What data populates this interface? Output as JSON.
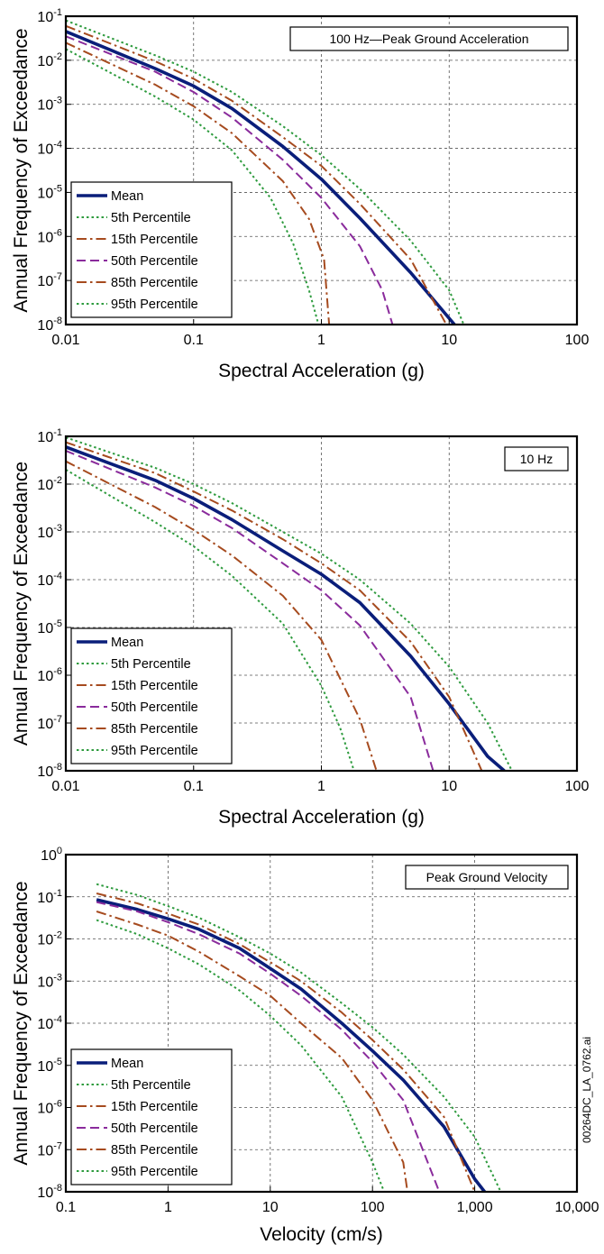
{
  "figure_id": "00264DC_LA_0762.ai",
  "series_styles": [
    {
      "key": "mean",
      "color": "#0a1e7a",
      "dash": "",
      "width": 3.6
    },
    {
      "key": "p5",
      "color": "#2e9b3e",
      "dash": "2.5,3",
      "width": 2
    },
    {
      "key": "p15",
      "color": "#a64b1f",
      "dash": "11,4,2.5,4",
      "width": 2
    },
    {
      "key": "p50",
      "color": "#8a2b9c",
      "dash": "10,5",
      "width": 2
    },
    {
      "key": "p85",
      "color": "#a64b1f",
      "dash": "11,4,2.5,4",
      "width": 2
    },
    {
      "key": "p95",
      "color": "#2e9b3e",
      "dash": "2.5,3",
      "width": 2
    }
  ],
  "chart_data": [
    {
      "type": "line",
      "panel_label": "100 Hz—Peak Ground Acceleration",
      "xlabel": "Spectral Acceleration (g)",
      "ylabel": "Annual Frequency of Exceedance",
      "xscale": "log",
      "yscale": "log",
      "xlim": [
        0.01,
        100
      ],
      "ylim": [
        1e-08,
        0.1
      ],
      "x_ticks": [
        {
          "v": 0.01,
          "label": "0.01"
        },
        {
          "v": 0.1,
          "label": "0.1"
        },
        {
          "v": 1,
          "label": "1"
        },
        {
          "v": 10,
          "label": "10"
        },
        {
          "v": 100,
          "label": "100"
        }
      ],
      "y_ticks": [
        {
          "v": 1e-08,
          "base": "10",
          "exp": "-8"
        },
        {
          "v": 1e-07,
          "base": "10",
          "exp": "-7"
        },
        {
          "v": 1e-06,
          "base": "10",
          "exp": "-6"
        },
        {
          "v": 1e-05,
          "base": "10",
          "exp": "-5"
        },
        {
          "v": 0.0001,
          "base": "10",
          "exp": "-4"
        },
        {
          "v": 0.001,
          "base": "10",
          "exp": "-3"
        },
        {
          "v": 0.01,
          "base": "10",
          "exp": "-2"
        },
        {
          "v": 0.1,
          "base": "10",
          "exp": "-1"
        }
      ],
      "grid": true,
      "legend_position": "bottom-left",
      "series": [
        {
          "name": "Mean",
          "style": 0,
          "x": [
            0.01,
            0.05,
            0.1,
            0.2,
            0.5,
            1,
            2,
            5,
            11
          ],
          "y": [
            0.045,
            0.0065,
            0.0026,
            0.0008,
            0.00011,
            2e-05,
            2.6e-06,
            1.5e-07,
            1e-08
          ]
        },
        {
          "name": "5th Percentile",
          "style": 1,
          "x": [
            0.01,
            0.05,
            0.1,
            0.2,
            0.4,
            0.6,
            0.8,
            0.95
          ],
          "y": [
            0.018,
            0.0015,
            0.00045,
            9e-05,
            7.5e-06,
            7e-07,
            6e-08,
            1e-08
          ]
        },
        {
          "name": "15th Percentile",
          "style": 2,
          "x": [
            0.01,
            0.05,
            0.1,
            0.2,
            0.5,
            0.8,
            1.05,
            1.15
          ],
          "y": [
            0.025,
            0.0028,
            0.0009,
            0.00022,
            1.8e-05,
            2.5e-06,
            3e-07,
            1e-08
          ]
        },
        {
          "name": "50th Percentile",
          "style": 3,
          "x": [
            0.01,
            0.05,
            0.1,
            0.2,
            0.5,
            1,
            2,
            3,
            3.6
          ],
          "y": [
            0.035,
            0.0055,
            0.0019,
            0.0005,
            5.5e-05,
            7.5e-06,
            6e-07,
            6e-08,
            1e-08
          ]
        },
        {
          "name": "85th Percentile",
          "style": 4,
          "x": [
            0.01,
            0.05,
            0.1,
            0.2,
            0.5,
            1,
            2,
            5,
            9.5
          ],
          "y": [
            0.06,
            0.0095,
            0.0038,
            0.0012,
            0.00018,
            4e-05,
            5.5e-06,
            3e-07,
            1e-08
          ]
        },
        {
          "name": "95th Percentile",
          "style": 5,
          "x": [
            0.01,
            0.05,
            0.1,
            0.2,
            0.5,
            1,
            2,
            5,
            10,
            13
          ],
          "y": [
            0.08,
            0.013,
            0.0055,
            0.0019,
            0.00032,
            7e-05,
            1.2e-05,
            8e-07,
            6e-08,
            1e-08
          ]
        }
      ]
    },
    {
      "type": "line",
      "panel_label": "10 Hz",
      "xlabel": "Spectral Acceleration (g)",
      "ylabel": "Annual Frequency of Exceedance",
      "xscale": "log",
      "yscale": "log",
      "xlim": [
        0.01,
        100
      ],
      "ylim": [
        1e-08,
        0.1
      ],
      "x_ticks": [
        {
          "v": 0.01,
          "label": "0.01"
        },
        {
          "v": 0.1,
          "label": "0.1"
        },
        {
          "v": 1,
          "label": "1"
        },
        {
          "v": 10,
          "label": "10"
        },
        {
          "v": 100,
          "label": "100"
        }
      ],
      "y_ticks": [
        {
          "v": 1e-08,
          "base": "10",
          "exp": "-8"
        },
        {
          "v": 1e-07,
          "base": "10",
          "exp": "-7"
        },
        {
          "v": 1e-06,
          "base": "10",
          "exp": "-6"
        },
        {
          "v": 1e-05,
          "base": "10",
          "exp": "-5"
        },
        {
          "v": 0.0001,
          "base": "10",
          "exp": "-4"
        },
        {
          "v": 0.001,
          "base": "10",
          "exp": "-3"
        },
        {
          "v": 0.01,
          "base": "10",
          "exp": "-2"
        },
        {
          "v": 0.1,
          "base": "10",
          "exp": "-1"
        }
      ],
      "grid": true,
      "legend_position": "bottom-left",
      "series": [
        {
          "name": "Mean",
          "style": 0,
          "x": [
            0.01,
            0.05,
            0.1,
            0.2,
            0.5,
            1,
            2,
            5,
            10,
            20,
            27
          ],
          "y": [
            0.06,
            0.012,
            0.005,
            0.0018,
            0.0004,
            0.00013,
            3.3e-05,
            2.5e-06,
            2.5e-07,
            2e-08,
            1e-08
          ]
        },
        {
          "name": "5th Percentile",
          "style": 1,
          "x": [
            0.01,
            0.05,
            0.1,
            0.2,
            0.5,
            1,
            1.4,
            1.8
          ],
          "y": [
            0.02,
            0.0016,
            0.0005,
            0.00012,
            1.2e-05,
            6e-07,
            8e-08,
            1e-08
          ]
        },
        {
          "name": "15th Percentile",
          "style": 2,
          "x": [
            0.01,
            0.05,
            0.1,
            0.2,
            0.5,
            1,
            2,
            2.7
          ],
          "y": [
            0.03,
            0.0033,
            0.0011,
            0.00032,
            4.6e-05,
            5.5e-06,
            1.2e-07,
            1e-08
          ]
        },
        {
          "name": "50th Percentile",
          "style": 3,
          "x": [
            0.01,
            0.05,
            0.1,
            0.2,
            0.5,
            1,
            2,
            5,
            7.5
          ],
          "y": [
            0.05,
            0.0085,
            0.0035,
            0.0012,
            0.00022,
            6e-05,
            1.1e-05,
            3.5e-07,
            1e-08
          ]
        },
        {
          "name": "85th Percentile",
          "style": 4,
          "x": [
            0.01,
            0.05,
            0.1,
            0.2,
            0.5,
            1,
            2,
            5,
            10,
            18
          ],
          "y": [
            0.075,
            0.017,
            0.007,
            0.0028,
            0.0007,
            0.00022,
            6e-05,
            5e-06,
            3.5e-07,
            1e-08
          ]
        },
        {
          "name": "95th Percentile",
          "style": 5,
          "x": [
            0.01,
            0.05,
            0.1,
            0.2,
            0.5,
            1,
            2,
            5,
            10,
            20,
            31
          ],
          "y": [
            0.095,
            0.022,
            0.01,
            0.004,
            0.001,
            0.00035,
            0.0001,
            1.2e-05,
            1.5e-06,
            1e-07,
            1e-08
          ]
        }
      ]
    },
    {
      "type": "line",
      "panel_label": "Peak Ground Velocity",
      "xlabel": "Velocity (cm/s)",
      "ylabel": "Annual Frequency of Exceedance",
      "xscale": "log",
      "yscale": "log",
      "xlim": [
        0.1,
        10000
      ],
      "ylim": [
        1e-08,
        1
      ],
      "x_ticks": [
        {
          "v": 0.1,
          "label": "0.1"
        },
        {
          "v": 1,
          "label": "1"
        },
        {
          "v": 10,
          "label": "10"
        },
        {
          "v": 100,
          "label": "100"
        },
        {
          "v": 1000,
          "label": "1,000"
        },
        {
          "v": 10000,
          "label": "10,000"
        }
      ],
      "y_ticks": [
        {
          "v": 1e-08,
          "base": "10",
          "exp": "-8"
        },
        {
          "v": 1e-07,
          "base": "10",
          "exp": "-7"
        },
        {
          "v": 1e-06,
          "base": "10",
          "exp": "-6"
        },
        {
          "v": 1e-05,
          "base": "10",
          "exp": "-5"
        },
        {
          "v": 0.0001,
          "base": "10",
          "exp": "-4"
        },
        {
          "v": 0.001,
          "base": "10",
          "exp": "-3"
        },
        {
          "v": 0.01,
          "base": "10",
          "exp": "-2"
        },
        {
          "v": 0.1,
          "base": "10",
          "exp": "-1"
        },
        {
          "v": 1,
          "base": "10",
          "exp": "0"
        }
      ],
      "grid": true,
      "legend_position": "bottom-left",
      "series": [
        {
          "name": "Mean",
          "style": 0,
          "x": [
            0.2,
            0.5,
            1,
            2,
            5,
            10,
            20,
            50,
            100,
            200,
            500,
            1000,
            1250
          ],
          "y": [
            0.085,
            0.05,
            0.03,
            0.017,
            0.006,
            0.002,
            0.00065,
            0.0001,
            2.2e-05,
            4.5e-06,
            3.5e-07,
            2e-08,
            1e-08
          ]
        },
        {
          "name": "5th Percentile",
          "style": 1,
          "x": [
            0.2,
            0.5,
            1,
            2,
            5,
            10,
            20,
            50,
            100,
            130
          ],
          "y": [
            0.028,
            0.013,
            0.006,
            0.0025,
            0.0006,
            0.00015,
            3e-05,
            1.8e-06,
            5e-08,
            1e-08
          ]
        },
        {
          "name": "15th Percentile",
          "style": 2,
          "x": [
            0.2,
            0.5,
            1,
            2,
            5,
            10,
            20,
            50,
            100,
            200,
            220
          ],
          "y": [
            0.045,
            0.022,
            0.012,
            0.005,
            0.0013,
            0.00045,
            0.0001,
            1.5e-05,
            1.5e-06,
            5e-08,
            1e-08
          ]
        },
        {
          "name": "50th Percentile",
          "style": 3,
          "x": [
            0.2,
            0.5,
            1,
            2,
            5,
            10,
            20,
            50,
            100,
            200,
            450
          ],
          "y": [
            0.075,
            0.045,
            0.025,
            0.013,
            0.0045,
            0.0015,
            0.00045,
            7e-05,
            1.2e-05,
            1.5e-06,
            1e-08
          ]
        },
        {
          "name": "85th Percentile",
          "style": 4,
          "x": [
            0.2,
            0.5,
            1,
            2,
            5,
            10,
            20,
            50,
            100,
            200,
            500,
            1000
          ],
          "y": [
            0.12,
            0.07,
            0.04,
            0.022,
            0.0075,
            0.0028,
            0.001,
            0.00018,
            4e-05,
            8e-06,
            6e-07,
            1e-08
          ]
        },
        {
          "name": "95th Percentile",
          "style": 5,
          "x": [
            0.2,
            0.5,
            1,
            2,
            5,
            10,
            20,
            50,
            100,
            200,
            500,
            1000,
            1800
          ],
          "y": [
            0.2,
            0.11,
            0.06,
            0.032,
            0.011,
            0.0045,
            0.0016,
            0.0003,
            8e-05,
            1.8e-05,
            1.8e-06,
            2e-07,
            1e-08
          ]
        }
      ]
    }
  ]
}
